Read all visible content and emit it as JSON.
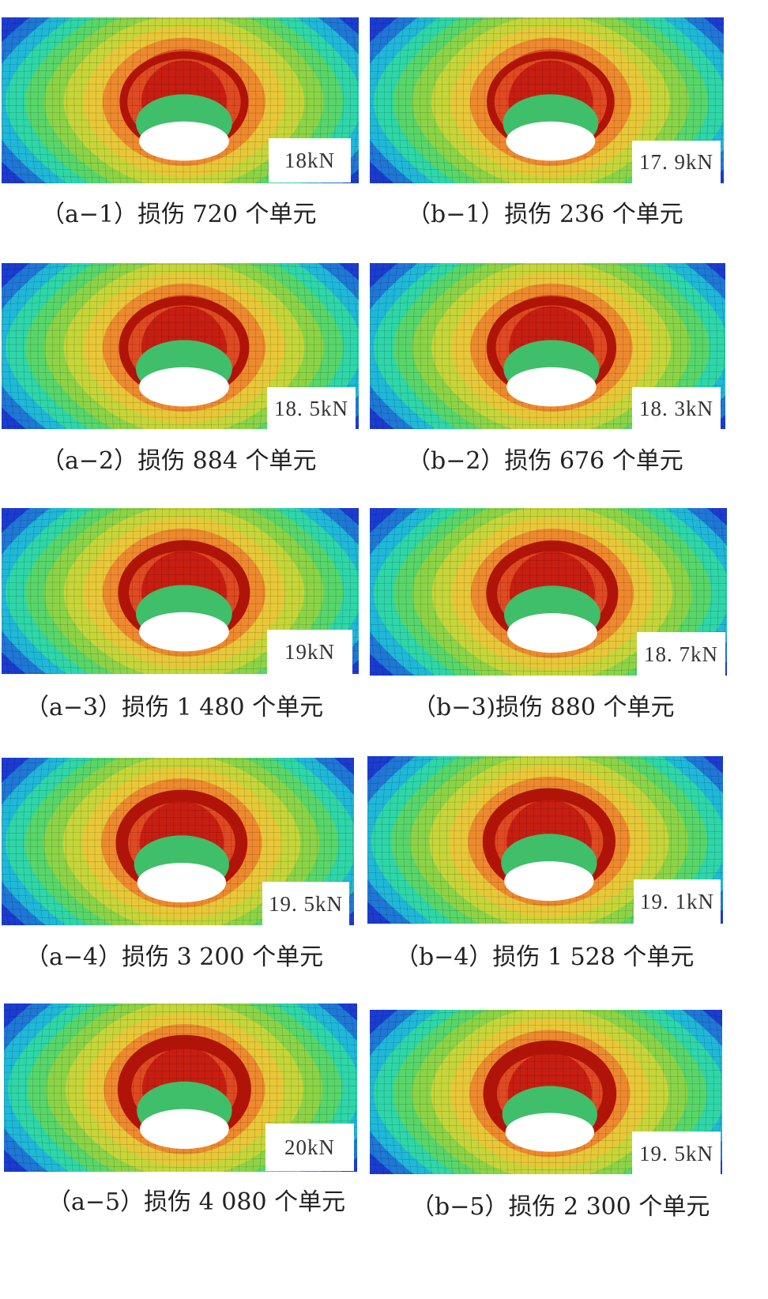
{
  "colors": {
    "contour_levels": [
      "#1b3ccf",
      "#1f78d6",
      "#20b8d8",
      "#2fd6a8",
      "#58d66a",
      "#8cd447",
      "#c6d63a",
      "#e8c838",
      "#ee8a2e",
      "#e04a22",
      "#c81e12"
    ],
    "hole": "#ffffff",
    "label_box": "#ffffff"
  },
  "panels": [
    {
      "id": "a-1",
      "load": "18kN",
      "caption": "（a−1）损伤 720 个单元"
    },
    {
      "id": "b-1",
      "load": "17. 9kN",
      "caption": "（b−1）损伤 236 个单元"
    },
    {
      "id": "a-2",
      "load": "18. 5kN",
      "caption": "（a−2）损伤 884 个单元"
    },
    {
      "id": "b-2",
      "load": "18. 3kN",
      "caption": "（b−2）损伤 676 个单元"
    },
    {
      "id": "a-3",
      "load": "19kN",
      "caption": "（a−3）损伤 1 480 个单元"
    },
    {
      "id": "b-3",
      "load": "18. 7kN",
      "caption": "（b−3)损伤 880 个单元"
    },
    {
      "id": "a-4",
      "load": "19. 5kN",
      "caption": "（a−4）损伤 3 200 个单元"
    },
    {
      "id": "b-4",
      "load": "19. 1kN",
      "caption": "（b−4）损伤 1 528 个单元"
    },
    {
      "id": "a-5",
      "load": "20kN",
      "caption": "（a−5）损伤 4 080 个单元"
    },
    {
      "id": "b-5",
      "load": "19. 5kN",
      "caption": "（b−5）损伤 2 300 个单元"
    }
  ]
}
